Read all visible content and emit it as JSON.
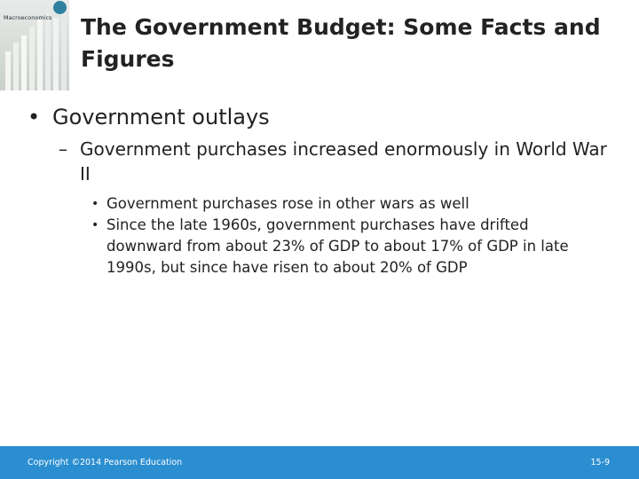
{
  "title": "The Government Budget: Some Facts and Figures",
  "cover": {
    "title": "Macroeconomics",
    "icon": "book-cover-thumbnail"
  },
  "bullets": {
    "level1": "Government outlays",
    "level2": "Government purchases increased enormously in World War II",
    "level3": [
      "Government purchases rose in other wars as well",
      "Since the late 1960s, government purchases have drifted downward from about 23% of GDP to about 17% of GDP in late 1990s, but since have risen to about 20% of GDP"
    ],
    "markers": {
      "level1": "•",
      "level2": "–",
      "level3": "•"
    }
  },
  "footer": {
    "copyright": "Copyright ©2014 Pearson Education",
    "page": "15-9"
  },
  "colors": {
    "footer_bg": "#2b8ed0",
    "text": "#222222",
    "footer_text": "#ffffff"
  }
}
